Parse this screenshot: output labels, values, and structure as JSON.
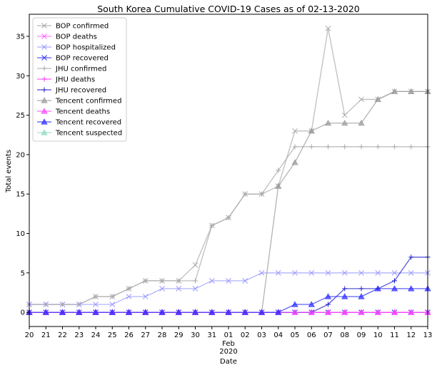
{
  "chart_data": {
    "type": "line",
    "title": "South Korea Cumulative COVID-19 Cases as of 02-13-2020",
    "xlabel": "Date",
    "ylabel": "Total events",
    "x_ticks": [
      "20",
      "21",
      "22",
      "23",
      "24",
      "25",
      "26",
      "27",
      "28",
      "29",
      "30",
      "31",
      "01",
      "02",
      "03",
      "04",
      "05",
      "06",
      "07",
      "08",
      "09",
      "10",
      "11",
      "12",
      "13"
    ],
    "x_sublabels": [
      "Feb",
      "2020"
    ],
    "x_dates": [
      "2020-01-20",
      "2020-01-21",
      "2020-01-22",
      "2020-01-23",
      "2020-01-24",
      "2020-01-25",
      "2020-01-26",
      "2020-01-27",
      "2020-01-28",
      "2020-01-29",
      "2020-01-30",
      "2020-01-31",
      "2020-02-01",
      "2020-02-02",
      "2020-02-03",
      "2020-02-04",
      "2020-02-05",
      "2020-02-06",
      "2020-02-07",
      "2020-02-08",
      "2020-02-09",
      "2020-02-10",
      "2020-02-11",
      "2020-02-12",
      "2020-02-13"
    ],
    "y_ticks": [
      0,
      5,
      10,
      15,
      20,
      25,
      30,
      35
    ],
    "ylim": [
      -1.8,
      37.8
    ],
    "grid": false,
    "legend_position": "top-left",
    "series": [
      {
        "name": "BOP confirmed",
        "color": "#a9a9a9",
        "marker": "x",
        "values": [
          1,
          1,
          1,
          1,
          2,
          2,
          3,
          4,
          4,
          4,
          6,
          11,
          12,
          15,
          15,
          16,
          23,
          23,
          36,
          25,
          27,
          27,
          28,
          28,
          28
        ]
      },
      {
        "name": "BOP deaths",
        "color": "#ff66ff",
        "marker": "x",
        "values": [
          0,
          0,
          0,
          0,
          0,
          0,
          0,
          0,
          0,
          0,
          0,
          0,
          0,
          0,
          0,
          0,
          0,
          0,
          0,
          0,
          0,
          0,
          0,
          0,
          0
        ]
      },
      {
        "name": "BOP hospitalized",
        "color": "#9999ff",
        "marker": "x",
        "values": [
          1,
          1,
          1,
          1,
          1,
          1,
          2,
          2,
          3,
          3,
          3,
          4,
          4,
          4,
          5,
          5,
          5,
          5,
          5,
          5,
          5,
          5,
          5,
          5,
          5
        ]
      },
      {
        "name": "BOP recovered",
        "color": "#3333ff",
        "marker": "x",
        "values": [
          0,
          0,
          0,
          0,
          0,
          0,
          0,
          0,
          0,
          0,
          0,
          0,
          0,
          0,
          0,
          0,
          0,
          0,
          0,
          0,
          0,
          0,
          0,
          0,
          0
        ]
      },
      {
        "name": "JHU confirmed",
        "color": "#a9a9a9",
        "marker": "+",
        "values": [
          1,
          1,
          1,
          1,
          2,
          2,
          3,
          4,
          4,
          4,
          4,
          11,
          12,
          15,
          15,
          18,
          21,
          21,
          21,
          21,
          21,
          21,
          21,
          21,
          21
        ]
      },
      {
        "name": "JHU deaths",
        "color": "#ff33ff",
        "marker": "+",
        "values": [
          0,
          0,
          0,
          0,
          0,
          0,
          0,
          0,
          0,
          0,
          0,
          0,
          0,
          0,
          0,
          0,
          0,
          0,
          0,
          0,
          0,
          0,
          0,
          0,
          0
        ]
      },
      {
        "name": "JHU recovered",
        "color": "#2222cc",
        "marker": "+",
        "values": [
          0,
          0,
          0,
          0,
          0,
          0,
          0,
          0,
          0,
          0,
          0,
          0,
          0,
          0,
          0,
          0,
          0,
          0,
          1,
          3,
          3,
          3,
          4,
          7,
          7
        ]
      },
      {
        "name": "Tencent confirmed",
        "color": "#999999",
        "marker": "^",
        "values": [
          0,
          0,
          0,
          0,
          0,
          0,
          0,
          0,
          0,
          0,
          0,
          0,
          0,
          0,
          0,
          16,
          19,
          23,
          24,
          24,
          24,
          27,
          28,
          28,
          28
        ]
      },
      {
        "name": "Tencent deaths",
        "color": "#ff44ff",
        "marker": "^",
        "values": [
          0,
          0,
          0,
          0,
          0,
          0,
          0,
          0,
          0,
          0,
          0,
          0,
          0,
          0,
          0,
          0,
          0,
          0,
          0,
          0,
          0,
          0,
          0,
          0,
          0
        ]
      },
      {
        "name": "Tencent recovered",
        "color": "#2a2aff",
        "marker": "^",
        "values": [
          0,
          0,
          0,
          0,
          0,
          0,
          0,
          0,
          0,
          0,
          0,
          0,
          0,
          0,
          0,
          0,
          1,
          1,
          2,
          2,
          2,
          3,
          3,
          3,
          3
        ]
      },
      {
        "name": "Tencent suspected",
        "color": "#8fd9c4",
        "marker": "^",
        "values": []
      }
    ]
  }
}
